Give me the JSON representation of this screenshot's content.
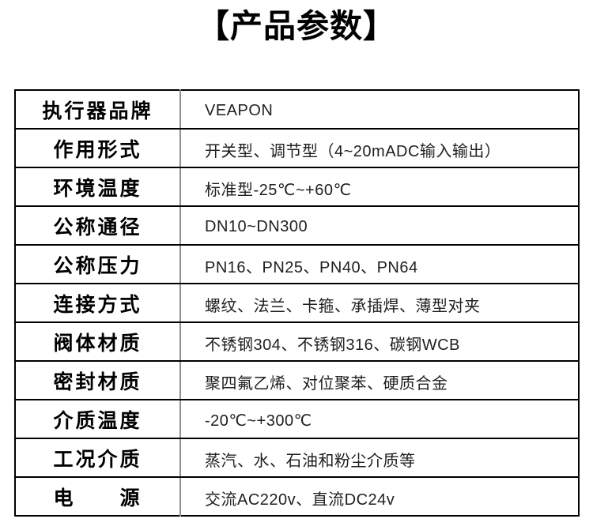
{
  "page": {
    "title": "【产品参数】"
  },
  "colors": {
    "background": "#ffffff",
    "title_text": "#000000",
    "label_text": "#000000",
    "value_text": "#1f1f1f",
    "table_border": "#000000",
    "column_divider": "#8f8f8f"
  },
  "table": {
    "rows": [
      {
        "label": "执行器品牌",
        "value": "VEAPON"
      },
      {
        "label": "作用形式",
        "value": "开关型、调节型（4~20mADC输入输出）"
      },
      {
        "label": "环境温度",
        "value": "标准型-25℃~+60℃"
      },
      {
        "label": "公称通径",
        "value": "DN10~DN300"
      },
      {
        "label": "公称压力",
        "value": "PN16、PN25、PN40、PN64"
      },
      {
        "label": "连接方式",
        "value": "螺纹、法兰、卡箍、承插焊、薄型对夹"
      },
      {
        "label": "阀体材质",
        "value": "不锈钢304、不锈钢316、碳钢WCB"
      },
      {
        "label": "密封材质",
        "value": "聚四氟乙烯、对位聚苯、硬质合金"
      },
      {
        "label": "介质温度",
        "value": "-20℃~+300℃"
      },
      {
        "label": "工况介质",
        "value": "蒸汽、水、石油和粉尘介质等"
      },
      {
        "label": "电　　源",
        "value": "交流AC220v、直流DC24v"
      }
    ]
  }
}
